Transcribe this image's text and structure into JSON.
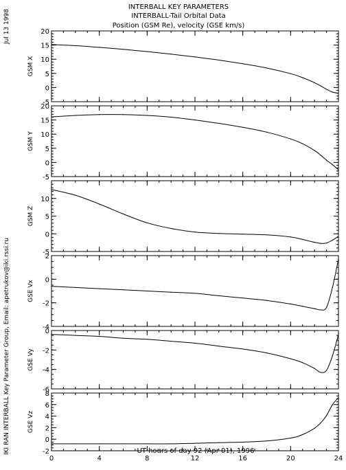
{
  "header": {
    "line1": "INTERBALL KEY PARAMETERS",
    "line2": "INTERBALL-Tail Orbital Data",
    "line3": "Position (GSM Re), velocity (GSE km/s)"
  },
  "side_date": "Jul 13 1998",
  "side_credit": "IKI RAN INTERBALL Key Parameter Group, Email: apetrukov@iki.rssi.ru",
  "chart_data": {
    "type": "line",
    "x": [
      0,
      2,
      4,
      6,
      8,
      10,
      12,
      14,
      16,
      18,
      20,
      21,
      22,
      22.5,
      23,
      23.5,
      24
    ],
    "x_ticks": [
      "0",
      "4",
      "8",
      "12",
      "16",
      "20",
      "24"
    ],
    "xlim": [
      0,
      24
    ],
    "xlabel": "UT hours of day  92 (Apr 01), 1996",
    "panels": [
      {
        "ylabel": "GSM X",
        "ylim": [
          -5,
          20
        ],
        "yticks": [
          "20",
          "15",
          "10",
          "5",
          "0",
          "-5"
        ],
        "values": [
          15.2,
          14.8,
          14.2,
          13.5,
          12.7,
          11.8,
          10.8,
          9.7,
          8.4,
          6.9,
          4.9,
          3.5,
          1.7,
          0.6,
          -0.6,
          -1.6,
          -2.0
        ]
      },
      {
        "ylabel": "GSM Y",
        "ylim": [
          -5,
          20
        ],
        "yticks": [
          "20",
          "15",
          "10",
          "5",
          "0",
          "-5"
        ],
        "values": [
          16.1,
          16.6,
          16.9,
          16.9,
          16.6,
          16.0,
          15.0,
          13.8,
          12.4,
          10.7,
          8.3,
          6.6,
          4.2,
          2.6,
          0.8,
          -0.8,
          -2.6
        ]
      },
      {
        "ylabel": "GSM Z",
        "ylim": [
          -5,
          15
        ],
        "yticks": [
          "10",
          "5",
          "0",
          "-5"
        ],
        "values": [
          12.5,
          10.9,
          8.4,
          5.6,
          3.1,
          1.5,
          0.5,
          0.1,
          -0.1,
          -0.3,
          -0.9,
          -1.6,
          -2.4,
          -2.7,
          -2.6,
          -1.8,
          -0.7
        ]
      },
      {
        "ylabel": "GSE Vx",
        "ylim": [
          -4,
          2
        ],
        "yticks": [
          "2",
          "0",
          "-2",
          "-4"
        ],
        "values": [
          -0.6,
          -0.7,
          -0.8,
          -0.9,
          -1.0,
          -1.1,
          -1.2,
          -1.4,
          -1.6,
          -1.8,
          -2.1,
          -2.3,
          -2.5,
          -2.6,
          -2.4,
          -0.7,
          1.7
        ]
      },
      {
        "ylabel": "GSE Vy",
        "ylim": [
          -6,
          0
        ],
        "yticks": [
          "0",
          "-2",
          "-4",
          "-6"
        ],
        "values": [
          -0.4,
          -0.5,
          -0.6,
          -0.8,
          -0.9,
          -1.1,
          -1.3,
          -1.6,
          -1.9,
          -2.3,
          -2.9,
          -3.3,
          -3.9,
          -4.3,
          -4.1,
          -2.6,
          -0.4
        ]
      },
      {
        "ylabel": "GSE Vz",
        "ylim": [
          -2,
          8
        ],
        "yticks": [
          "8",
          "6",
          "4",
          "2",
          "0",
          "-2"
        ],
        "values": [
          -0.8,
          -0.8,
          -0.8,
          -0.8,
          -0.8,
          -0.8,
          -0.7,
          -0.6,
          -0.5,
          -0.3,
          0.2,
          0.8,
          1.9,
          2.8,
          4.1,
          6.0,
          7.2
        ]
      }
    ]
  }
}
